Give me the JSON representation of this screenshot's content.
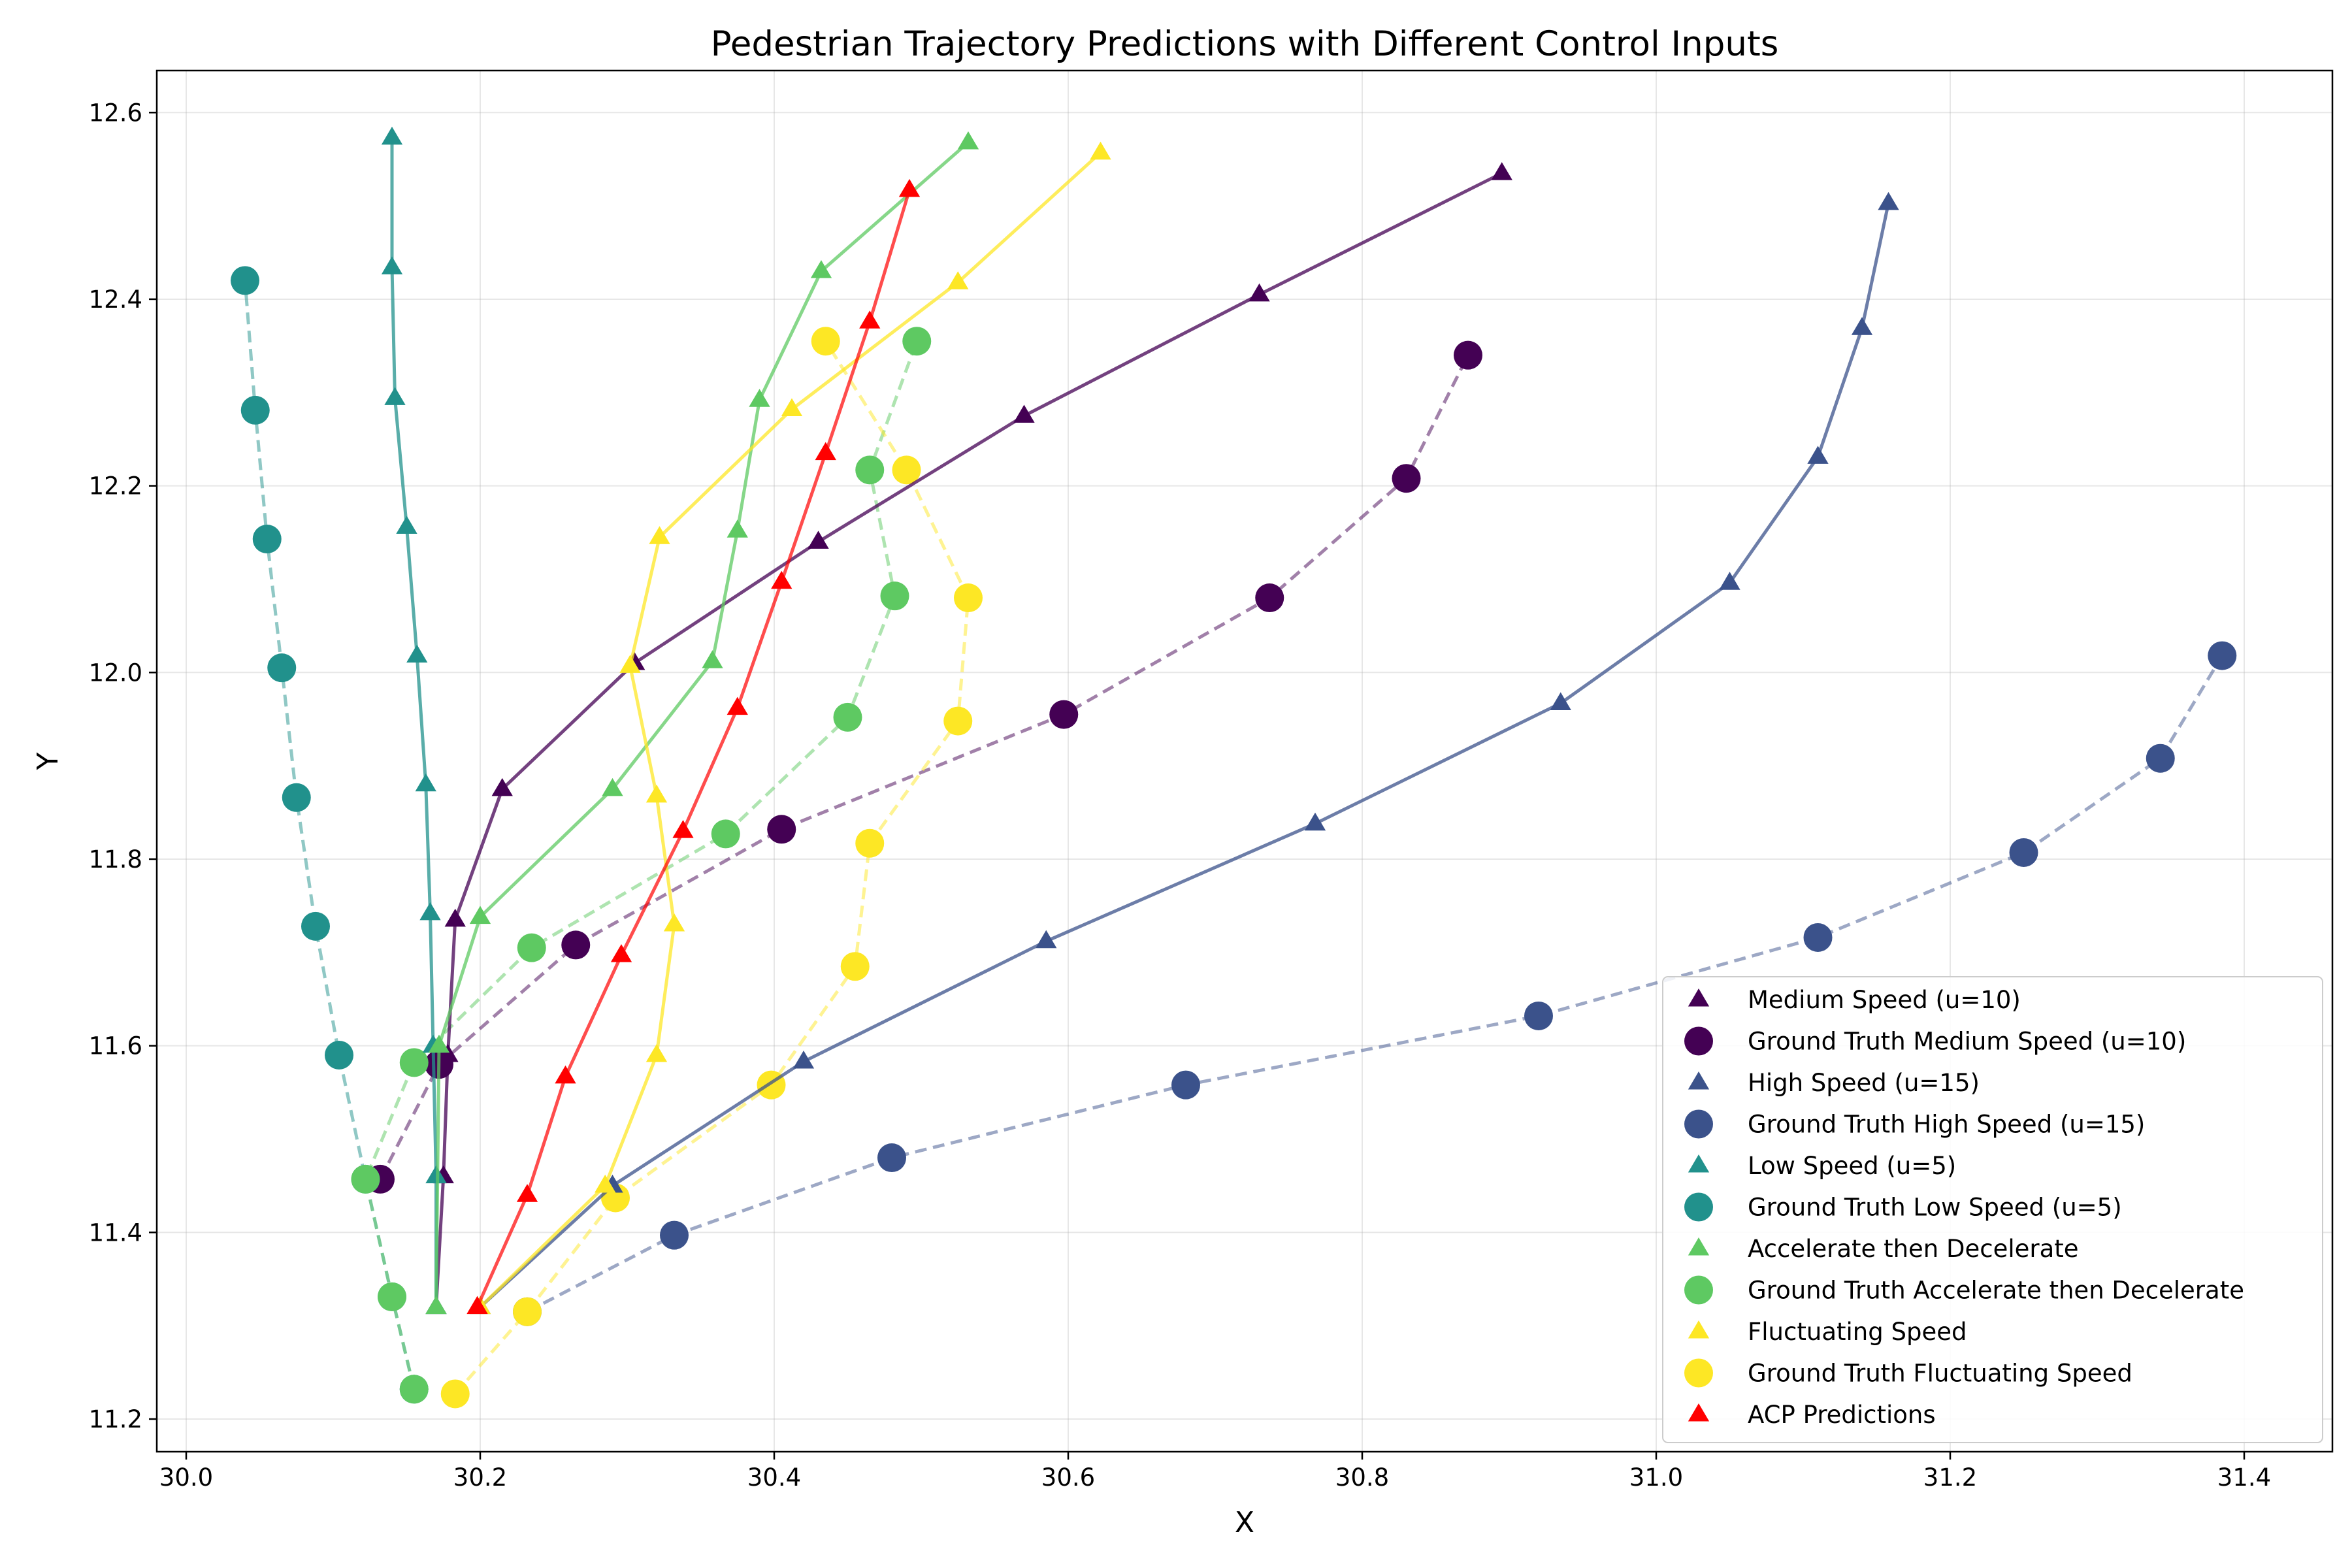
{
  "chart_data": {
    "type": "scatter",
    "title": "Pedestrian Trajectory Predictions with Different Control Inputs",
    "xlabel": "X",
    "ylabel": "Y",
    "xlim": [
      29.98,
      31.46
    ],
    "ylim": [
      11.165,
      12.645
    ],
    "xticks": [
      30.0,
      30.2,
      30.4,
      30.6,
      30.8,
      31.0,
      31.2,
      31.4
    ],
    "xtick_labels": [
      "30.0",
      "30.2",
      "30.4",
      "30.6",
      "30.8",
      "31.0",
      "31.2",
      "31.4"
    ],
    "yticks": [
      11.2,
      11.4,
      11.6,
      11.8,
      12.0,
      12.2,
      12.4,
      12.6
    ],
    "ytick_labels": [
      "11.2",
      "11.4",
      "11.6",
      "11.8",
      "12.0",
      "12.2",
      "12.4",
      "12.6"
    ],
    "grid": true,
    "legend_position": "lower-right",
    "series": [
      {
        "name": "Medium Speed (u=10)",
        "kind": "prediction",
        "marker": "triangle",
        "line": "solid",
        "color": "#440154",
        "x": [
          30.17,
          30.175,
          30.178,
          30.183,
          30.215,
          30.305,
          30.43,
          30.57,
          30.73,
          30.895
        ],
        "y": [
          11.32,
          11.46,
          11.59,
          11.735,
          11.875,
          12.01,
          12.14,
          12.275,
          12.405,
          12.535
        ]
      },
      {
        "name": "Ground Truth Medium Speed (u=10)",
        "kind": "ground_truth",
        "marker": "circle",
        "line": "dashed",
        "color": "#440154",
        "x": [
          30.132,
          30.172,
          30.265,
          30.405,
          30.597,
          30.737,
          30.83,
          30.872
        ],
        "y": [
          11.457,
          11.58,
          11.708,
          11.832,
          11.955,
          12.08,
          12.208,
          12.34
        ]
      },
      {
        "name": "High Speed (u=15)",
        "kind": "prediction",
        "marker": "triangle",
        "line": "solid",
        "color": "#3b528b",
        "x": [
          30.2,
          30.29,
          30.42,
          30.585,
          30.768,
          30.935,
          31.05,
          31.11,
          31.14,
          31.158
        ],
        "y": [
          11.32,
          11.45,
          11.583,
          11.712,
          11.838,
          11.967,
          12.096,
          12.231,
          12.369,
          12.503
        ]
      },
      {
        "name": "Ground Truth High Speed (u=15)",
        "kind": "ground_truth",
        "marker": "circle",
        "line": "dashed",
        "color": "#3b528b",
        "x": [
          30.232,
          30.332,
          30.48,
          30.68,
          30.92,
          31.11,
          31.25,
          31.343,
          31.385
        ],
        "y": [
          11.315,
          11.397,
          11.48,
          11.558,
          11.632,
          11.716,
          11.807,
          11.908,
          12.018
        ]
      },
      {
        "name": "Low Speed (u=5)",
        "kind": "prediction",
        "marker": "triangle",
        "line": "solid",
        "color": "#21918c",
        "x": [
          30.17,
          30.17,
          30.168,
          30.166,
          30.163,
          30.157,
          30.15,
          30.142,
          30.14,
          30.14
        ],
        "y": [
          11.32,
          11.46,
          11.6,
          11.742,
          11.88,
          12.018,
          12.156,
          12.294,
          12.434,
          12.573
        ]
      },
      {
        "name": "Ground Truth Low Speed (u=5)",
        "kind": "ground_truth",
        "marker": "circle",
        "line": "dashed",
        "color": "#21918c",
        "x": [
          30.155,
          30.14,
          30.122,
          30.104,
          30.088,
          30.075,
          30.065,
          30.055,
          30.047,
          30.04
        ],
        "y": [
          11.232,
          11.331,
          11.457,
          11.59,
          11.728,
          11.866,
          12.005,
          12.143,
          12.281,
          12.42
        ]
      },
      {
        "name": "Accelerate then Decelerate",
        "kind": "prediction",
        "marker": "triangle",
        "line": "solid",
        "color": "#5ec962",
        "x": [
          30.17,
          30.172,
          30.2,
          30.29,
          30.358,
          30.375,
          30.39,
          30.432,
          30.532
        ],
        "y": [
          11.32,
          11.6,
          11.738,
          11.875,
          12.012,
          12.152,
          12.292,
          12.43,
          12.568
        ]
      },
      {
        "name": "Ground Truth Accelerate then Decelerate",
        "kind": "ground_truth",
        "marker": "circle",
        "line": "dashed",
        "color": "#5ec962",
        "x": [
          30.155,
          30.14,
          30.122,
          30.155,
          30.235,
          30.367,
          30.45,
          30.482,
          30.465,
          30.497
        ],
        "y": [
          11.232,
          11.331,
          11.457,
          11.582,
          11.705,
          11.827,
          11.952,
          12.082,
          12.217,
          12.355
        ]
      },
      {
        "name": "Fluctuating Speed",
        "kind": "prediction",
        "marker": "triangle",
        "line": "solid",
        "color": "#fde725",
        "x": [
          30.2,
          30.285,
          30.32,
          30.332,
          30.32,
          30.302,
          30.322,
          30.412,
          30.525,
          30.622
        ],
        "y": [
          11.32,
          11.45,
          11.59,
          11.73,
          11.868,
          12.007,
          12.145,
          12.282,
          12.418,
          12.557
        ]
      },
      {
        "name": "Ground Truth Fluctuating Speed",
        "kind": "ground_truth",
        "marker": "circle",
        "line": "dashed",
        "color": "#fde725",
        "x": [
          30.183,
          30.232,
          30.292,
          30.398,
          30.455,
          30.465,
          30.525,
          30.532,
          30.49,
          30.435
        ],
        "y": [
          11.227,
          11.315,
          11.437,
          11.558,
          11.685,
          11.817,
          11.948,
          12.08,
          12.217,
          12.355
        ]
      },
      {
        "name": "ACP Predictions",
        "kind": "prediction",
        "marker": "triangle",
        "line": "solid",
        "color": "#ff0000",
        "x": [
          30.198,
          30.232,
          30.258,
          30.296,
          30.338,
          30.375,
          30.405,
          30.435,
          30.465,
          30.492
        ],
        "y": [
          11.32,
          11.44,
          11.567,
          11.697,
          11.83,
          11.962,
          12.097,
          12.235,
          12.376,
          12.517
        ]
      }
    ]
  }
}
